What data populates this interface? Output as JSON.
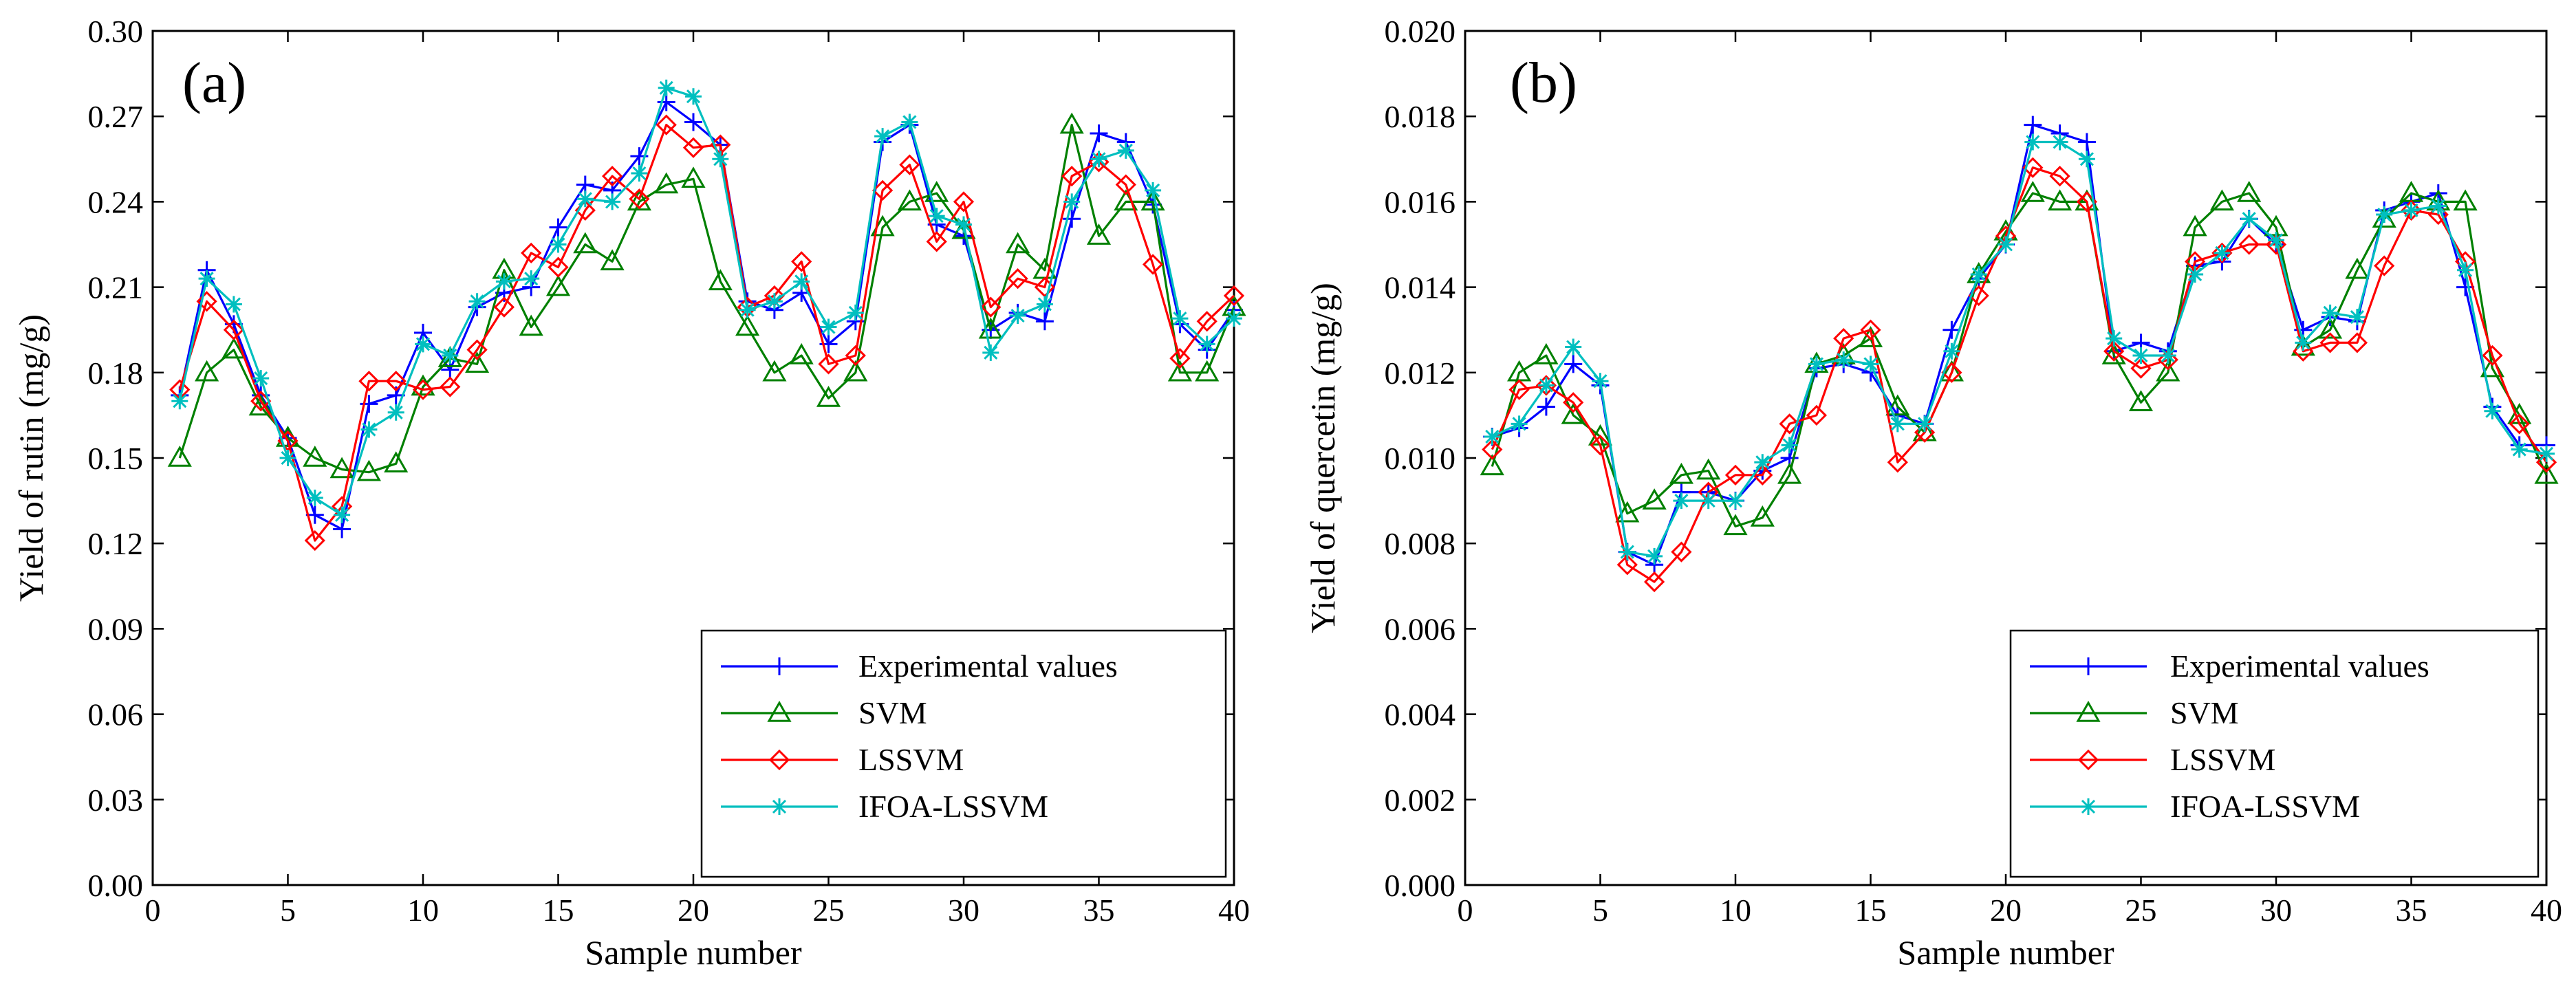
{
  "colors": {
    "experimental": "#0000ff",
    "svm": "#008000",
    "lssvm": "#ff0000",
    "ifoa": "#00bfbf"
  },
  "chart_data": [
    {
      "type": "line",
      "panel_label": "(a)",
      "title": "",
      "xlabel": "Sample number",
      "ylabel": "Yield of rutin (mg/g)",
      "xlim": [
        0,
        40
      ],
      "ylim": [
        0,
        0.3
      ],
      "xticks": [
        "0",
        "5",
        "10",
        "15",
        "20",
        "25",
        "30",
        "35",
        "40"
      ],
      "yticks": [
        "0.00",
        "0.03",
        "0.06",
        "0.09",
        "0.12",
        "0.15",
        "0.18",
        "0.21",
        "0.24",
        "0.27",
        "0.30"
      ],
      "legend_position": "bottom-right",
      "x": [
        1,
        2,
        3,
        4,
        5,
        6,
        7,
        8,
        9,
        10,
        11,
        12,
        13,
        14,
        15,
        16,
        17,
        18,
        19,
        20,
        21,
        22,
        23,
        24,
        25,
        26,
        27,
        28,
        29,
        30,
        31,
        32,
        33,
        34,
        35,
        36,
        37,
        38,
        39,
        40
      ],
      "series": [
        {
          "name": "Experimental values",
          "marker": "plus",
          "color_key": "experimental",
          "values": [
            0.172,
            0.216,
            0.197,
            0.172,
            0.157,
            0.13,
            0.125,
            0.169,
            0.172,
            0.194,
            0.181,
            0.203,
            0.208,
            0.21,
            0.231,
            0.246,
            0.244,
            0.256,
            0.275,
            0.268,
            0.26,
            0.205,
            0.202,
            0.208,
            0.19,
            0.198,
            0.261,
            0.267,
            0.232,
            0.228,
            0.195,
            0.201,
            0.198,
            0.234,
            0.264,
            0.261,
            0.239,
            0.197,
            0.188,
            0.202
          ]
        },
        {
          "name": "SVM",
          "marker": "triangle",
          "color_key": "svm",
          "values": [
            0.15,
            0.18,
            0.188,
            0.168,
            0.157,
            0.15,
            0.146,
            0.145,
            0.148,
            0.175,
            0.185,
            0.183,
            0.216,
            0.196,
            0.21,
            0.225,
            0.219,
            0.24,
            0.246,
            0.248,
            0.212,
            0.196,
            0.18,
            0.186,
            0.171,
            0.18,
            0.231,
            0.24,
            0.243,
            0.23,
            0.195,
            0.225,
            0.216,
            0.267,
            0.228,
            0.24,
            0.24,
            0.18,
            0.18,
            0.203
          ]
        },
        {
          "name": "LSSVM",
          "marker": "diamond",
          "color_key": "lssvm",
          "values": [
            0.174,
            0.205,
            0.195,
            0.17,
            0.156,
            0.121,
            0.133,
            0.177,
            0.177,
            0.174,
            0.175,
            0.188,
            0.203,
            0.222,
            0.217,
            0.237,
            0.249,
            0.241,
            0.267,
            0.259,
            0.26,
            0.203,
            0.207,
            0.219,
            0.183,
            0.186,
            0.244,
            0.253,
            0.226,
            0.24,
            0.203,
            0.213,
            0.21,
            0.249,
            0.254,
            0.246,
            0.218,
            0.185,
            0.198,
            0.207
          ]
        },
        {
          "name": "IFOA-LSSVM",
          "marker": "asterisk",
          "color_key": "ifoa",
          "values": [
            0.17,
            0.213,
            0.204,
            0.178,
            0.15,
            0.136,
            0.13,
            0.16,
            0.166,
            0.19,
            0.186,
            0.205,
            0.212,
            0.213,
            0.225,
            0.241,
            0.24,
            0.25,
            0.28,
            0.277,
            0.255,
            0.202,
            0.205,
            0.212,
            0.196,
            0.201,
            0.263,
            0.268,
            0.235,
            0.232,
            0.187,
            0.2,
            0.204,
            0.24,
            0.255,
            0.258,
            0.244,
            0.199,
            0.19,
            0.199
          ]
        }
      ]
    },
    {
      "type": "line",
      "panel_label": "(b)",
      "title": "",
      "xlabel": "Sample number",
      "ylabel": "Yield of quercetin (mg/g)",
      "xlim": [
        0,
        40
      ],
      "ylim": [
        0,
        0.02
      ],
      "xticks": [
        "0",
        "5",
        "10",
        "15",
        "20",
        "25",
        "30",
        "35",
        "40"
      ],
      "yticks": [
        "0.000",
        "0.002",
        "0.004",
        "0.006",
        "0.008",
        "0.010",
        "0.012",
        "0.014",
        "0.016",
        "0.018",
        "0.020"
      ],
      "legend_position": "bottom-right",
      "x": [
        1,
        2,
        3,
        4,
        5,
        6,
        7,
        8,
        9,
        10,
        11,
        12,
        13,
        14,
        15,
        16,
        17,
        18,
        19,
        20,
        21,
        22,
        23,
        24,
        25,
        26,
        27,
        28,
        29,
        30,
        31,
        32,
        33,
        34,
        35,
        36,
        37,
        38,
        39,
        40
      ],
      "series": [
        {
          "name": "Experimental values",
          "marker": "plus",
          "color_key": "experimental",
          "values": [
            0.0105,
            0.0107,
            0.0112,
            0.0122,
            0.0117,
            0.0078,
            0.0075,
            0.0092,
            0.0092,
            0.009,
            0.0097,
            0.01,
            0.0121,
            0.0122,
            0.012,
            0.011,
            0.0108,
            0.013,
            0.0142,
            0.015,
            0.0178,
            0.0176,
            0.0174,
            0.0125,
            0.0127,
            0.0125,
            0.0145,
            0.0146,
            0.0156,
            0.015,
            0.013,
            0.0133,
            0.0132,
            0.0158,
            0.016,
            0.0162,
            0.014,
            0.0112,
            0.0103,
            0.0103
          ]
        },
        {
          "name": "SVM",
          "marker": "triangle",
          "color_key": "svm",
          "values": [
            0.0098,
            0.012,
            0.0124,
            0.011,
            0.0105,
            0.0087,
            0.009,
            0.0096,
            0.0097,
            0.0084,
            0.0086,
            0.0096,
            0.0122,
            0.0124,
            0.0128,
            0.0112,
            0.0106,
            0.012,
            0.0143,
            0.0153,
            0.0162,
            0.016,
            0.016,
            0.0124,
            0.0113,
            0.012,
            0.0154,
            0.016,
            0.0162,
            0.0154,
            0.0126,
            0.013,
            0.0144,
            0.0156,
            0.0162,
            0.016,
            0.016,
            0.0121,
            0.011,
            0.0096
          ]
        },
        {
          "name": "LSSVM",
          "marker": "diamond",
          "color_key": "lssvm",
          "values": [
            0.0102,
            0.0116,
            0.0117,
            0.0113,
            0.0103,
            0.0075,
            0.0071,
            0.0078,
            0.0092,
            0.0096,
            0.0096,
            0.0108,
            0.011,
            0.0128,
            0.013,
            0.0099,
            0.0106,
            0.012,
            0.0138,
            0.0152,
            0.0168,
            0.0166,
            0.016,
            0.0125,
            0.0121,
            0.0123,
            0.0146,
            0.0148,
            0.015,
            0.015,
            0.0125,
            0.0127,
            0.0127,
            0.0145,
            0.0158,
            0.0157,
            0.0146,
            0.0124,
            0.0108,
            0.0099
          ]
        },
        {
          "name": "IFOA-LSSVM",
          "marker": "asterisk",
          "color_key": "ifoa",
          "values": [
            0.0105,
            0.0108,
            0.0117,
            0.0126,
            0.0118,
            0.0078,
            0.0077,
            0.009,
            0.009,
            0.009,
            0.0099,
            0.0103,
            0.0122,
            0.0123,
            0.0122,
            0.0108,
            0.0108,
            0.0125,
            0.0143,
            0.015,
            0.0174,
            0.0174,
            0.017,
            0.0128,
            0.0124,
            0.0124,
            0.0143,
            0.0148,
            0.0156,
            0.0151,
            0.0127,
            0.0134,
            0.0133,
            0.0157,
            0.0158,
            0.0159,
            0.0144,
            0.0111,
            0.0102,
            0.0101
          ]
        }
      ]
    }
  ]
}
